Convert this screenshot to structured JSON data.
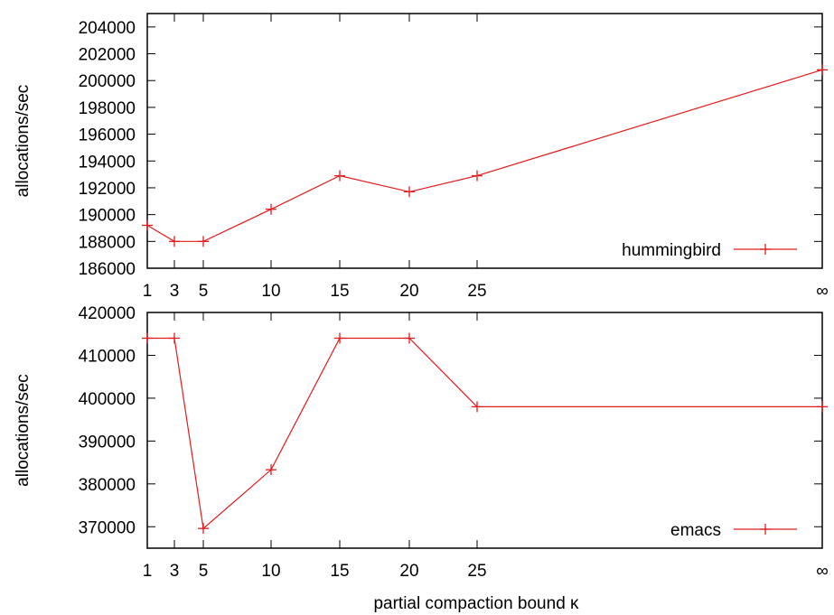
{
  "chart_data": [
    {
      "type": "line",
      "xlabel": "",
      "ylabel": "allocations/sec",
      "x_tick_labels": [
        "1",
        "3",
        "5",
        "10",
        "15",
        "20",
        "25",
        "∞"
      ],
      "y_ticks": [
        186000,
        188000,
        190000,
        192000,
        194000,
        196000,
        198000,
        200000,
        202000,
        204000
      ],
      "ylim": [
        186000,
        205000
      ],
      "legend_position": "bottom-right",
      "grid": false,
      "series": [
        {
          "name": "hummingbird",
          "color": "#e41a1c",
          "points": [
            {
              "x": "1",
              "y": 189200
            },
            {
              "x": "3",
              "y": 188000
            },
            {
              "x": "5",
              "y": 188000
            },
            {
              "x": "10",
              "y": 190400
            },
            {
              "x": "15",
              "y": 192900
            },
            {
              "x": "20",
              "y": 191700
            },
            {
              "x": "25",
              "y": 192900
            },
            {
              "x": "∞",
              "y": 200800
            }
          ]
        }
      ]
    },
    {
      "type": "line",
      "xlabel": "partial compaction bound κ",
      "ylabel": "allocations/sec",
      "x_tick_labels": [
        "1",
        "3",
        "5",
        "10",
        "15",
        "20",
        "25",
        "∞"
      ],
      "y_ticks": [
        370000,
        380000,
        390000,
        400000,
        410000,
        420000
      ],
      "ylim": [
        365000,
        420000
      ],
      "legend_position": "bottom-right",
      "grid": false,
      "series": [
        {
          "name": "emacs",
          "color": "#e41a1c",
          "points": [
            {
              "x": "1",
              "y": 414000
            },
            {
              "x": "3",
              "y": 414000
            },
            {
              "x": "5",
              "y": 369600
            },
            {
              "x": "10",
              "y": 383300
            },
            {
              "x": "15",
              "y": 414000
            },
            {
              "x": "20",
              "y": 414000
            },
            {
              "x": "25",
              "y": 398000
            },
            {
              "x": "∞",
              "y": 398000
            }
          ]
        }
      ]
    }
  ]
}
